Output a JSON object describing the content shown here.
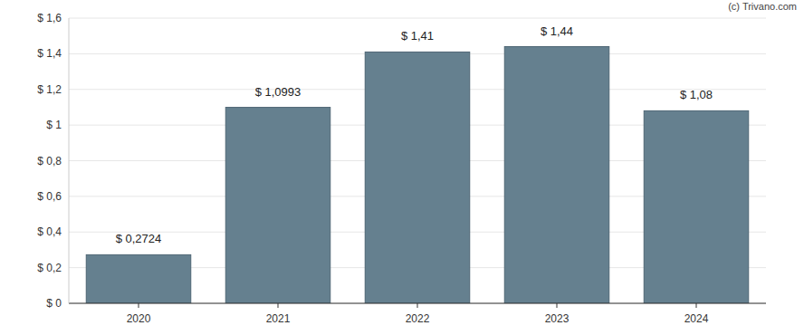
{
  "chart_data": {
    "type": "bar",
    "annotations": [
      "(c) Trivano.com"
    ],
    "categories": [
      "2020",
      "2021",
      "2022",
      "2023",
      "2024"
    ],
    "values": [
      0.2724,
      1.0993,
      1.41,
      1.44,
      1.08
    ],
    "value_labels": [
      "$ 0,2724",
      "$ 1,0993",
      "$ 1,41",
      "$ 1,44",
      "$ 1,08"
    ],
    "color": "#65808f",
    "ylim": [
      0,
      1.6
    ],
    "yticks": [
      {
        "value": 0,
        "label": "$ 0"
      },
      {
        "value": 0.2,
        "label": "$ 0,2"
      },
      {
        "value": 0.4,
        "label": "$ 0,4"
      },
      {
        "value": 0.6,
        "label": "$ 0,6"
      },
      {
        "value": 0.8,
        "label": "$ 0,8"
      },
      {
        "value": 1,
        "label": "$ 1"
      },
      {
        "value": 1.2,
        "label": "$ 1,2"
      },
      {
        "value": 1.4,
        "label": "$ 1,4"
      },
      {
        "value": 1.6,
        "label": "$ 1,6"
      }
    ],
    "grid": true,
    "data_labels": true
  }
}
